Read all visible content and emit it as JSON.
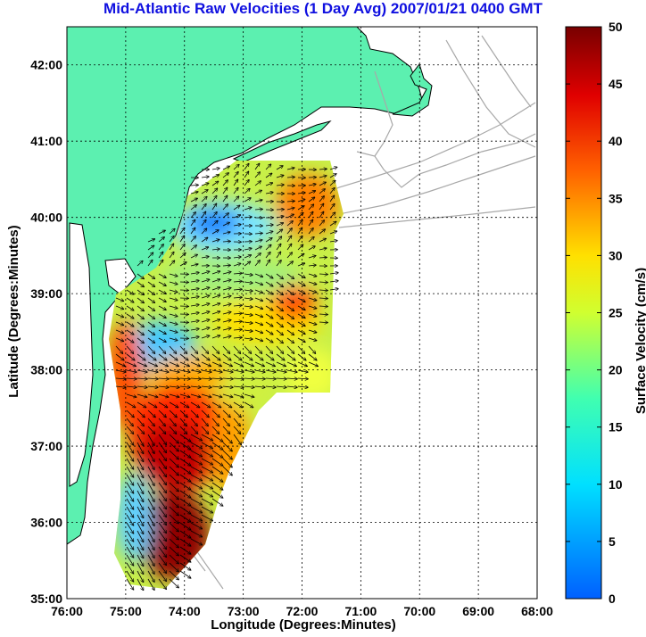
{
  "title": "Mid-Atlantic Raw Velocities (1 Day Avg) 2007/01/21 0400 GMT",
  "x_axis": {
    "label": "Longitude (Degrees:Minutes)",
    "ticks": [
      "76:00",
      "75:00",
      "74:00",
      "73:00",
      "72:00",
      "71:00",
      "70:00",
      "69:00",
      "68:00"
    ]
  },
  "y_axis": {
    "label": "Latitude (Degrees:Minutes)",
    "ticks": [
      "35:00",
      "36:00",
      "37:00",
      "38:00",
      "39:00",
      "40:00",
      "41:00",
      "42:00"
    ]
  },
  "colorbar": {
    "label": "Surface Velocity (cm/s)",
    "ticks": [
      "0",
      "5",
      "10",
      "15",
      "20",
      "25",
      "30",
      "35",
      "40",
      "45",
      "50"
    ],
    "range": [
      0,
      50
    ]
  },
  "map": {
    "lon_range": [
      -76,
      -68
    ],
    "lat_range": [
      35,
      42.5
    ],
    "land_color": "#5cf0b0",
    "coast_color": "#000000",
    "bathymetry_color": "#a8a8a8",
    "grid": "dotted"
  },
  "chart_data": {
    "type": "heatmap",
    "title": "Mid-Atlantic Raw Velocities (1 Day Avg) 2007/01/21 0400 GMT",
    "xlabel": "Longitude (Degrees:Minutes)",
    "ylabel": "Latitude (Degrees:Minutes)",
    "colorbar_label": "Surface Velocity (cm/s)",
    "xlim": [
      -76,
      -68
    ],
    "ylim": [
      35,
      42.5
    ],
    "clim": [
      0,
      50
    ],
    "grid": true,
    "velocity_regions": [
      {
        "lon": -74.1,
        "lat": 36.6,
        "speed": 48
      },
      {
        "lon": -73.9,
        "lat": 35.8,
        "speed": 50
      },
      {
        "lon": -74.5,
        "lat": 37.4,
        "speed": 40
      },
      {
        "lon": -72.0,
        "lat": 40.0,
        "speed": 32
      },
      {
        "lon": -72.6,
        "lat": 38.6,
        "speed": 35
      },
      {
        "lon": -73.6,
        "lat": 39.95,
        "speed": 10
      },
      {
        "lon": -74.4,
        "lat": 38.4,
        "speed": 12
      },
      {
        "lon": -74.7,
        "lat": 36.2,
        "speed": 10
      },
      {
        "lon": -73.2,
        "lat": 39.0,
        "speed": 25
      },
      {
        "lon": -73.0,
        "lat": 37.5,
        "speed": 20
      }
    ]
  }
}
